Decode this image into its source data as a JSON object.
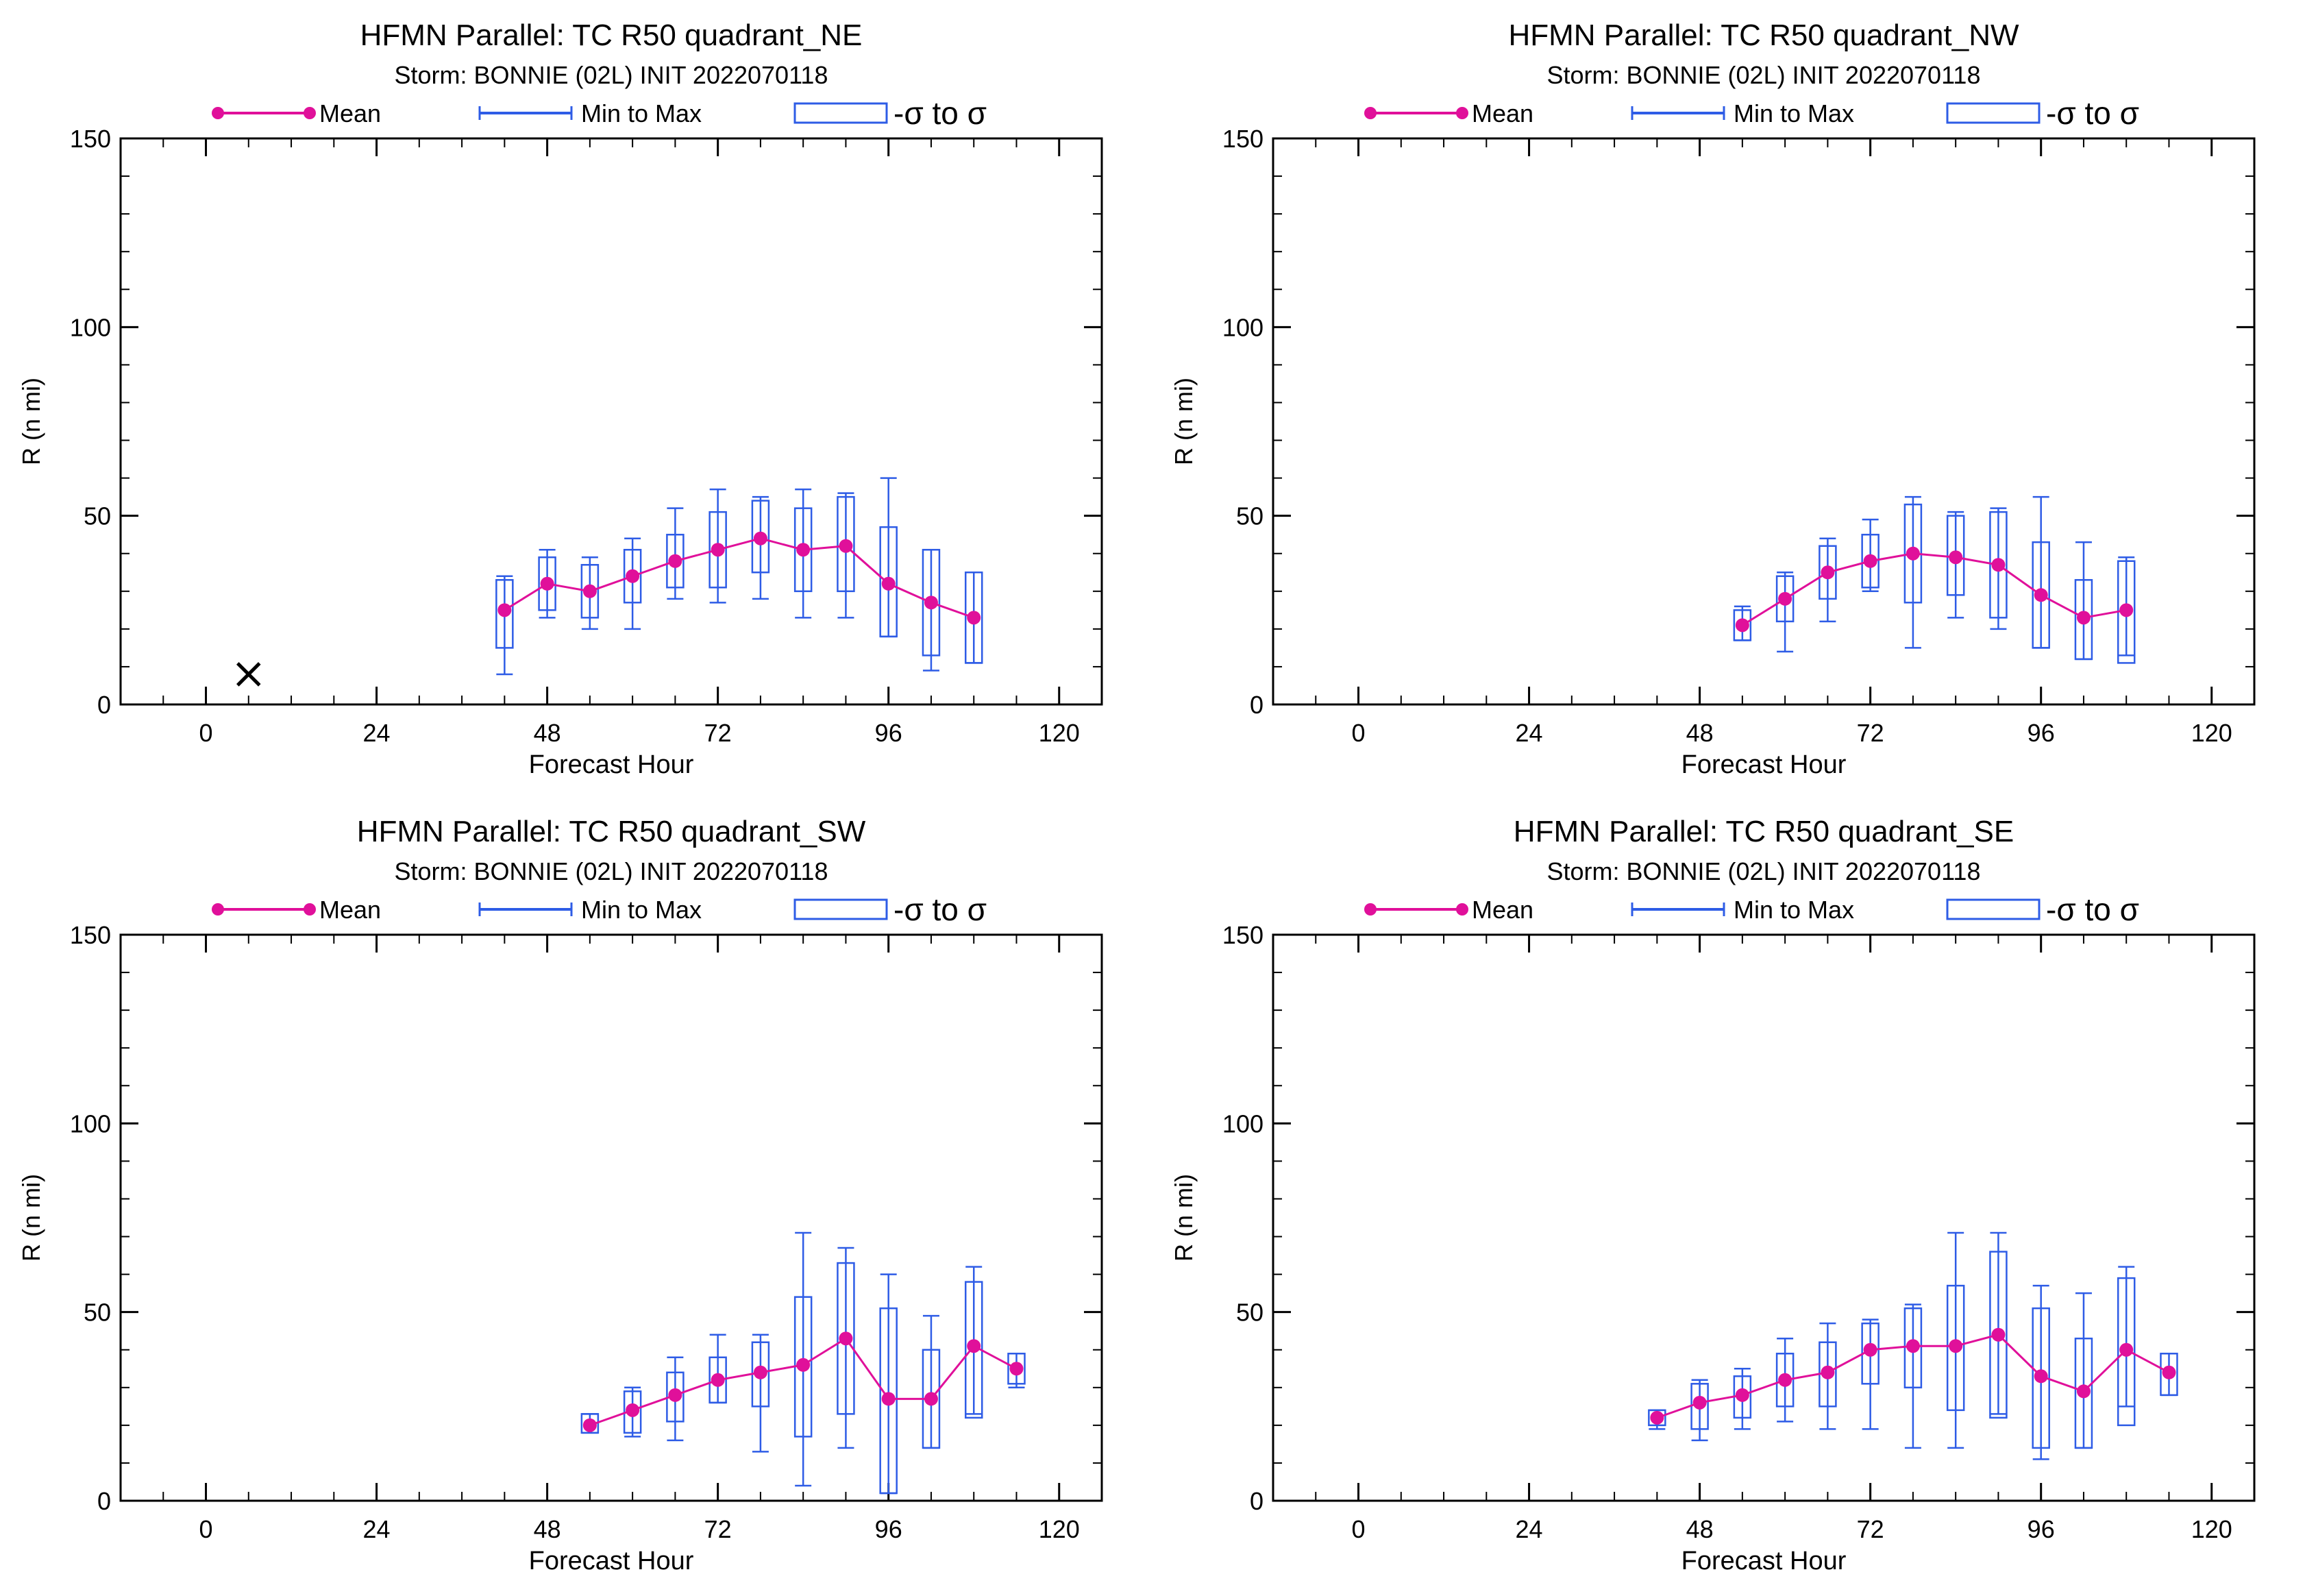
{
  "colors": {
    "mean": "#e0109a",
    "range": "#2e5ce6",
    "sigma": "#2e5ce6",
    "axis": "#000000",
    "obs": "#000000"
  },
  "legend": {
    "mean": "Mean",
    "minmax": "Min to Max",
    "sigma": "-σ to σ"
  },
  "chart_data": [
    {
      "type": "box",
      "title": "HFMN Parallel: TC  R50 quadrant_NE",
      "subtitle": "Storm: BONNIE (02L) INIT 2022070118",
      "xlabel": "Forecast Hour",
      "ylabel": "R (n mi)",
      "xlim": [
        -12,
        126
      ],
      "ylim": [
        0,
        150
      ],
      "xticks": [
        0,
        24,
        48,
        72,
        96,
        120
      ],
      "yticks": [
        0,
        50,
        100,
        150
      ],
      "observed": [
        {
          "x": 6,
          "y": 8
        }
      ],
      "points": [
        {
          "x": 42,
          "mean": 25,
          "min": 8,
          "max": 34,
          "sd_low": 15,
          "sd_high": 33
        },
        {
          "x": 48,
          "mean": 32,
          "min": 23,
          "max": 41,
          "sd_low": 25,
          "sd_high": 39
        },
        {
          "x": 54,
          "mean": 30,
          "min": 20,
          "max": 39,
          "sd_low": 23,
          "sd_high": 37
        },
        {
          "x": 60,
          "mean": 34,
          "min": 20,
          "max": 44,
          "sd_low": 27,
          "sd_high": 41
        },
        {
          "x": 66,
          "mean": 38,
          "min": 28,
          "max": 52,
          "sd_low": 31,
          "sd_high": 45
        },
        {
          "x": 72,
          "mean": 41,
          "min": 27,
          "max": 57,
          "sd_low": 31,
          "sd_high": 51
        },
        {
          "x": 78,
          "mean": 44,
          "min": 28,
          "max": 55,
          "sd_low": 35,
          "sd_high": 54
        },
        {
          "x": 84,
          "mean": 41,
          "min": 23,
          "max": 57,
          "sd_low": 30,
          "sd_high": 52
        },
        {
          "x": 90,
          "mean": 42,
          "min": 23,
          "max": 56,
          "sd_low": 30,
          "sd_high": 55
        },
        {
          "x": 96,
          "mean": 32,
          "min": 18,
          "max": 60,
          "sd_low": 18,
          "sd_high": 47
        },
        {
          "x": 102,
          "mean": 27,
          "min": 9,
          "max": 41,
          "sd_low": 13,
          "sd_high": 41
        },
        {
          "x": 108,
          "mean": 23,
          "min": 11,
          "max": 35,
          "sd_low": 11,
          "sd_high": 35
        }
      ]
    },
    {
      "type": "box",
      "title": "HFMN Parallel: TC  R50 quadrant_NW",
      "subtitle": "Storm: BONNIE (02L) INIT 2022070118",
      "xlabel": "Forecast Hour",
      "ylabel": "R (n mi)",
      "xlim": [
        -12,
        126
      ],
      "ylim": [
        0,
        150
      ],
      "xticks": [
        0,
        24,
        48,
        72,
        96,
        120
      ],
      "yticks": [
        0,
        50,
        100,
        150
      ],
      "observed": [],
      "points": [
        {
          "x": 54,
          "mean": 21,
          "min": 17,
          "max": 26,
          "sd_low": 17,
          "sd_high": 25
        },
        {
          "x": 60,
          "mean": 28,
          "min": 14,
          "max": 35,
          "sd_low": 22,
          "sd_high": 34
        },
        {
          "x": 66,
          "mean": 35,
          "min": 22,
          "max": 44,
          "sd_low": 28,
          "sd_high": 42
        },
        {
          "x": 72,
          "mean": 38,
          "min": 30,
          "max": 49,
          "sd_low": 31,
          "sd_high": 45
        },
        {
          "x": 78,
          "mean": 40,
          "min": 15,
          "max": 55,
          "sd_low": 27,
          "sd_high": 53
        },
        {
          "x": 84,
          "mean": 39,
          "min": 23,
          "max": 51,
          "sd_low": 29,
          "sd_high": 50
        },
        {
          "x": 90,
          "mean": 37,
          "min": 20,
          "max": 52,
          "sd_low": 23,
          "sd_high": 51
        },
        {
          "x": 96,
          "mean": 29,
          "min": 15,
          "max": 55,
          "sd_low": 15,
          "sd_high": 43
        },
        {
          "x": 102,
          "mean": 23,
          "min": 12,
          "max": 43,
          "sd_low": 12,
          "sd_high": 33
        },
        {
          "x": 108,
          "mean": 25,
          "min": 13,
          "max": 39,
          "sd_low": 11,
          "sd_high": 38
        }
      ]
    },
    {
      "type": "box",
      "title": "HFMN Parallel: TC  R50 quadrant_SW",
      "subtitle": "Storm: BONNIE (02L) INIT 2022070118",
      "xlabel": "Forecast Hour",
      "ylabel": "R (n mi)",
      "xlim": [
        -12,
        126
      ],
      "ylim": [
        0,
        150
      ],
      "xticks": [
        0,
        24,
        48,
        72,
        96,
        120
      ],
      "yticks": [
        0,
        50,
        100,
        150
      ],
      "observed": [],
      "points": [
        {
          "x": 54,
          "mean": 20,
          "min": 18,
          "max": 23,
          "sd_low": 18,
          "sd_high": 23
        },
        {
          "x": 60,
          "mean": 24,
          "min": 17,
          "max": 30,
          "sd_low": 18,
          "sd_high": 29
        },
        {
          "x": 66,
          "mean": 28,
          "min": 16,
          "max": 38,
          "sd_low": 21,
          "sd_high": 34
        },
        {
          "x": 72,
          "mean": 32,
          "min": 26,
          "max": 44,
          "sd_low": 26,
          "sd_high": 38
        },
        {
          "x": 78,
          "mean": 34,
          "min": 13,
          "max": 44,
          "sd_low": 25,
          "sd_high": 42
        },
        {
          "x": 84,
          "mean": 36,
          "min": 4,
          "max": 71,
          "sd_low": 17,
          "sd_high": 54
        },
        {
          "x": 90,
          "mean": 43,
          "min": 14,
          "max": 67,
          "sd_low": 23,
          "sd_high": 63
        },
        {
          "x": 96,
          "mean": 27,
          "min": 2,
          "max": 60,
          "sd_low": 2,
          "sd_high": 51
        },
        {
          "x": 102,
          "mean": 27,
          "min": 14,
          "max": 49,
          "sd_low": 14,
          "sd_high": 40
        },
        {
          "x": 108,
          "mean": 41,
          "min": 23,
          "max": 62,
          "sd_low": 22,
          "sd_high": 58
        },
        {
          "x": 114,
          "mean": 35,
          "min": 30,
          "max": 39,
          "sd_low": 31,
          "sd_high": 39
        }
      ]
    },
    {
      "type": "box",
      "title": "HFMN Parallel: TC  R50 quadrant_SE",
      "subtitle": "Storm: BONNIE (02L) INIT 2022070118",
      "xlabel": "Forecast Hour",
      "ylabel": "R (n mi)",
      "xlim": [
        -12,
        126
      ],
      "ylim": [
        0,
        150
      ],
      "xticks": [
        0,
        24,
        48,
        72,
        96,
        120
      ],
      "yticks": [
        0,
        50,
        100,
        150
      ],
      "observed": [],
      "points": [
        {
          "x": 42,
          "mean": 22,
          "min": 19,
          "max": 24,
          "sd_low": 20,
          "sd_high": 24
        },
        {
          "x": 48,
          "mean": 26,
          "min": 16,
          "max": 32,
          "sd_low": 19,
          "sd_high": 31
        },
        {
          "x": 54,
          "mean": 28,
          "min": 19,
          "max": 35,
          "sd_low": 22,
          "sd_high": 33
        },
        {
          "x": 60,
          "mean": 32,
          "min": 21,
          "max": 43,
          "sd_low": 25,
          "sd_high": 39
        },
        {
          "x": 66,
          "mean": 34,
          "min": 19,
          "max": 47,
          "sd_low": 25,
          "sd_high": 42
        },
        {
          "x": 72,
          "mean": 40,
          "min": 19,
          "max": 48,
          "sd_low": 31,
          "sd_high": 47
        },
        {
          "x": 78,
          "mean": 41,
          "min": 14,
          "max": 52,
          "sd_low": 30,
          "sd_high": 51
        },
        {
          "x": 84,
          "mean": 41,
          "min": 14,
          "max": 71,
          "sd_low": 24,
          "sd_high": 57
        },
        {
          "x": 90,
          "mean": 44,
          "min": 23,
          "max": 71,
          "sd_low": 22,
          "sd_high": 66
        },
        {
          "x": 96,
          "mean": 33,
          "min": 11,
          "max": 57,
          "sd_low": 14,
          "sd_high": 51
        },
        {
          "x": 102,
          "mean": 29,
          "min": 14,
          "max": 55,
          "sd_low": 14,
          "sd_high": 43
        },
        {
          "x": 108,
          "mean": 40,
          "min": 25,
          "max": 62,
          "sd_low": 20,
          "sd_high": 59
        },
        {
          "x": 114,
          "mean": 34,
          "min": 28,
          "max": 39,
          "sd_low": 28,
          "sd_high": 39
        }
      ]
    }
  ]
}
